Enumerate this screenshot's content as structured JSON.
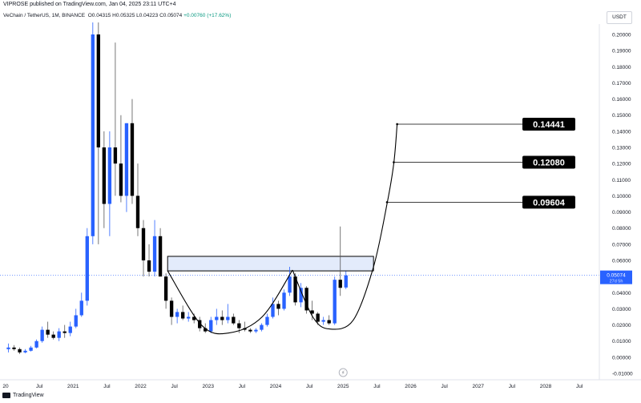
{
  "header": {
    "published": "VIPROSE published on TradingView.com, Jan 04, 2025 23:11 UTC+4"
  },
  "symbol": {
    "name": "VeChain / TetherUS, 1M, BINANCE",
    "open": "O0.04315",
    "high": "H0.05325",
    "low": "L0.04223",
    "close": "C0.05074",
    "change": "+0.00760 (+17.62%)"
  },
  "currency": "USDT",
  "footer": {
    "brand": "TradingView"
  },
  "colors": {
    "up": "#2962ff",
    "down": "#000000",
    "price_tag": "#2962ff",
    "label_bg": "#000000",
    "zone_fill": "#e3ebfb"
  },
  "chart_data": {
    "type": "candlestick",
    "ylim": [
      -0.01,
      0.2
    ],
    "y_ticks": [
      "-0.01000",
      "0.00000",
      "0.01000",
      "0.02000",
      "0.03000",
      "0.04000",
      "0.05000",
      "0.06000",
      "0.07000",
      "0.08000",
      "0.09000",
      "0.10000",
      "0.11000",
      "0.12000",
      "0.13000",
      "0.14000",
      "0.15000",
      "0.16000",
      "0.17000",
      "0.18000",
      "0.19000",
      "0.20000"
    ],
    "x_ticks": [
      {
        "label": "20",
        "t": 2020.0
      },
      {
        "label": "Jul",
        "t": 2020.5
      },
      {
        "label": "2021",
        "t": 2021.0
      },
      {
        "label": "Jul",
        "t": 2021.5
      },
      {
        "label": "2022",
        "t": 2022.0
      },
      {
        "label": "Jul",
        "t": 2022.5
      },
      {
        "label": "2023",
        "t": 2023.0
      },
      {
        "label": "Jul",
        "t": 2023.5
      },
      {
        "label": "2024",
        "t": 2024.0
      },
      {
        "label": "Jul",
        "t": 2024.5
      },
      {
        "label": "2025",
        "t": 2025.0
      },
      {
        "label": "Jul",
        "t": 2025.5
      },
      {
        "label": "2026",
        "t": 2026.0
      },
      {
        "label": "Jul",
        "t": 2026.5
      },
      {
        "label": "2027",
        "t": 2027.0
      },
      {
        "label": "Jul",
        "t": 2027.5
      },
      {
        "label": "2028",
        "t": 2028.0
      },
      {
        "label": "Jul",
        "t": 2028.5
      }
    ],
    "candles": [
      {
        "t": "2020-01",
        "o": 0.005,
        "h": 0.0085,
        "l": 0.003,
        "c": 0.006
      },
      {
        "t": "2020-02",
        "o": 0.006,
        "h": 0.0075,
        "l": 0.004,
        "c": 0.005
      },
      {
        "t": "2020-03",
        "o": 0.005,
        "h": 0.006,
        "l": 0.002,
        "c": 0.003
      },
      {
        "t": "2020-04",
        "o": 0.003,
        "h": 0.005,
        "l": 0.0025,
        "c": 0.004
      },
      {
        "t": "2020-05",
        "o": 0.004,
        "h": 0.007,
        "l": 0.0035,
        "c": 0.006
      },
      {
        "t": "2020-06",
        "o": 0.006,
        "h": 0.011,
        "l": 0.0055,
        "c": 0.01
      },
      {
        "t": "2020-07",
        "o": 0.01,
        "h": 0.019,
        "l": 0.009,
        "c": 0.017
      },
      {
        "t": "2020-08",
        "o": 0.017,
        "h": 0.022,
        "l": 0.012,
        "c": 0.014
      },
      {
        "t": "2020-09",
        "o": 0.014,
        "h": 0.016,
        "l": 0.011,
        "c": 0.012
      },
      {
        "t": "2020-10",
        "o": 0.012,
        "h": 0.018,
        "l": 0.01,
        "c": 0.016
      },
      {
        "t": "2020-11",
        "o": 0.016,
        "h": 0.02,
        "l": 0.012,
        "c": 0.015
      },
      {
        "t": "2020-12",
        "o": 0.015,
        "h": 0.022,
        "l": 0.013,
        "c": 0.019
      },
      {
        "t": "2021-01",
        "o": 0.019,
        "h": 0.03,
        "l": 0.018,
        "c": 0.026
      },
      {
        "t": "2021-02",
        "o": 0.026,
        "h": 0.04,
        "l": 0.025,
        "c": 0.035
      },
      {
        "t": "2021-03",
        "o": 0.035,
        "h": 0.08,
        "l": 0.032,
        "c": 0.075
      },
      {
        "t": "2021-04",
        "o": 0.075,
        "h": 0.23,
        "l": 0.07,
        "c": 0.2
      },
      {
        "t": "2021-05",
        "o": 0.2,
        "h": 0.225,
        "l": 0.07,
        "c": 0.13
      },
      {
        "t": "2021-06",
        "o": 0.13,
        "h": 0.14,
        "l": 0.08,
        "c": 0.095
      },
      {
        "t": "2021-07",
        "o": 0.095,
        "h": 0.14,
        "l": 0.075,
        "c": 0.13
      },
      {
        "t": "2021-08",
        "o": 0.13,
        "h": 0.195,
        "l": 0.1,
        "c": 0.12
      },
      {
        "t": "2021-09",
        "o": 0.12,
        "h": 0.15,
        "l": 0.096,
        "c": 0.1
      },
      {
        "t": "2021-10",
        "o": 0.1,
        "h": 0.145,
        "l": 0.09,
        "c": 0.145
      },
      {
        "t": "2021-11",
        "o": 0.145,
        "h": 0.16,
        "l": 0.095,
        "c": 0.1
      },
      {
        "t": "2021-12",
        "o": 0.1,
        "h": 0.12,
        "l": 0.075,
        "c": 0.08
      },
      {
        "t": "2022-01",
        "o": 0.08,
        "h": 0.085,
        "l": 0.05,
        "c": 0.06
      },
      {
        "t": "2022-02",
        "o": 0.06,
        "h": 0.07,
        "l": 0.05,
        "c": 0.053
      },
      {
        "t": "2022-03",
        "o": 0.053,
        "h": 0.085,
        "l": 0.05,
        "c": 0.075
      },
      {
        "t": "2022-04",
        "o": 0.075,
        "h": 0.08,
        "l": 0.05,
        "c": 0.05
      },
      {
        "t": "2022-05",
        "o": 0.05,
        "h": 0.052,
        "l": 0.03,
        "c": 0.035
      },
      {
        "t": "2022-06",
        "o": 0.035,
        "h": 0.037,
        "l": 0.02,
        "c": 0.025
      },
      {
        "t": "2022-07",
        "o": 0.025,
        "h": 0.03,
        "l": 0.021,
        "c": 0.028
      },
      {
        "t": "2022-08",
        "o": 0.028,
        "h": 0.032,
        "l": 0.023,
        "c": 0.024
      },
      {
        "t": "2022-09",
        "o": 0.024,
        "h": 0.028,
        "l": 0.022,
        "c": 0.025
      },
      {
        "t": "2022-10",
        "o": 0.025,
        "h": 0.027,
        "l": 0.021,
        "c": 0.023
      },
      {
        "t": "2022-11",
        "o": 0.023,
        "h": 0.025,
        "l": 0.016,
        "c": 0.018
      },
      {
        "t": "2022-12",
        "o": 0.018,
        "h": 0.021,
        "l": 0.015,
        "c": 0.016
      },
      {
        "t": "2023-01",
        "o": 0.016,
        "h": 0.025,
        "l": 0.015,
        "c": 0.023
      },
      {
        "t": "2023-02",
        "o": 0.023,
        "h": 0.03,
        "l": 0.02,
        "c": 0.025
      },
      {
        "t": "2023-03",
        "o": 0.025,
        "h": 0.029,
        "l": 0.02,
        "c": 0.023
      },
      {
        "t": "2023-04",
        "o": 0.023,
        "h": 0.033,
        "l": 0.021,
        "c": 0.025
      },
      {
        "t": "2023-05",
        "o": 0.025,
        "h": 0.027,
        "l": 0.02,
        "c": 0.021
      },
      {
        "t": "2023-06",
        "o": 0.021,
        "h": 0.023,
        "l": 0.015,
        "c": 0.018
      },
      {
        "t": "2023-07",
        "o": 0.018,
        "h": 0.022,
        "l": 0.016,
        "c": 0.017
      },
      {
        "t": "2023-08",
        "o": 0.017,
        "h": 0.018,
        "l": 0.015,
        "c": 0.016
      },
      {
        "t": "2023-09",
        "o": 0.016,
        "h": 0.018,
        "l": 0.015,
        "c": 0.017
      },
      {
        "t": "2023-10",
        "o": 0.017,
        "h": 0.021,
        "l": 0.016,
        "c": 0.02
      },
      {
        "t": "2023-11",
        "o": 0.02,
        "h": 0.027,
        "l": 0.019,
        "c": 0.025
      },
      {
        "t": "2023-12",
        "o": 0.025,
        "h": 0.037,
        "l": 0.024,
        "c": 0.033
      },
      {
        "t": "2024-01",
        "o": 0.033,
        "h": 0.035,
        "l": 0.026,
        "c": 0.03
      },
      {
        "t": "2024-02",
        "o": 0.03,
        "h": 0.042,
        "l": 0.029,
        "c": 0.04
      },
      {
        "t": "2024-03",
        "o": 0.04,
        "h": 0.056,
        "l": 0.038,
        "c": 0.05
      },
      {
        "t": "2024-04",
        "o": 0.05,
        "h": 0.052,
        "l": 0.032,
        "c": 0.034
      },
      {
        "t": "2024-05",
        "o": 0.034,
        "h": 0.046,
        "l": 0.031,
        "c": 0.043
      },
      {
        "t": "2024-06",
        "o": 0.043,
        "h": 0.044,
        "l": 0.027,
        "c": 0.029
      },
      {
        "t": "2024-07",
        "o": 0.029,
        "h": 0.035,
        "l": 0.023,
        "c": 0.027
      },
      {
        "t": "2024-08",
        "o": 0.027,
        "h": 0.028,
        "l": 0.02,
        "c": 0.022
      },
      {
        "t": "2024-09",
        "o": 0.022,
        "h": 0.025,
        "l": 0.02,
        "c": 0.023
      },
      {
        "t": "2024-10",
        "o": 0.023,
        "h": 0.026,
        "l": 0.02,
        "c": 0.021
      },
      {
        "t": "2024-11",
        "o": 0.021,
        "h": 0.05,
        "l": 0.02,
        "c": 0.048
      },
      {
        "t": "2024-12",
        "o": 0.048,
        "h": 0.081,
        "l": 0.038,
        "c": 0.043
      },
      {
        "t": "2025-01",
        "o": 0.0432,
        "h": 0.0533,
        "l": 0.0422,
        "c": 0.0507
      }
    ],
    "last_price": "0.05074",
    "countdown": "27d 5h",
    "resistance_zone": {
      "t_start": 2022.4,
      "t_end": 2025.45,
      "y_low": 0.0535,
      "y_high": 0.0625
    },
    "cup_curves": [
      {
        "points": [
          [
            2022.4,
            0.0535
          ],
          [
            2022.9,
            0.02
          ],
          [
            2023.3,
            0.015
          ],
          [
            2023.8,
            0.025
          ],
          [
            2024.25,
            0.054
          ]
        ]
      },
      {
        "points": [
          [
            2024.25,
            0.054
          ],
          [
            2024.55,
            0.025
          ],
          [
            2024.8,
            0.0175
          ],
          [
            2025.15,
            0.023
          ],
          [
            2025.45,
            0.056
          ],
          [
            2025.65,
            0.095
          ],
          [
            2025.75,
            0.12
          ],
          [
            2025.8,
            0.1444
          ]
        ]
      }
    ],
    "targets": [
      {
        "label": "0.14441",
        "value": 0.14441,
        "t_start": 2025.8
      },
      {
        "label": "0.12080",
        "value": 0.1208,
        "t_start": 2025.75
      },
      {
        "label": "0.09604",
        "value": 0.09604,
        "t_start": 2025.65
      }
    ],
    "event_marker": {
      "t": 2025.0,
      "glyph": "⚡"
    }
  }
}
